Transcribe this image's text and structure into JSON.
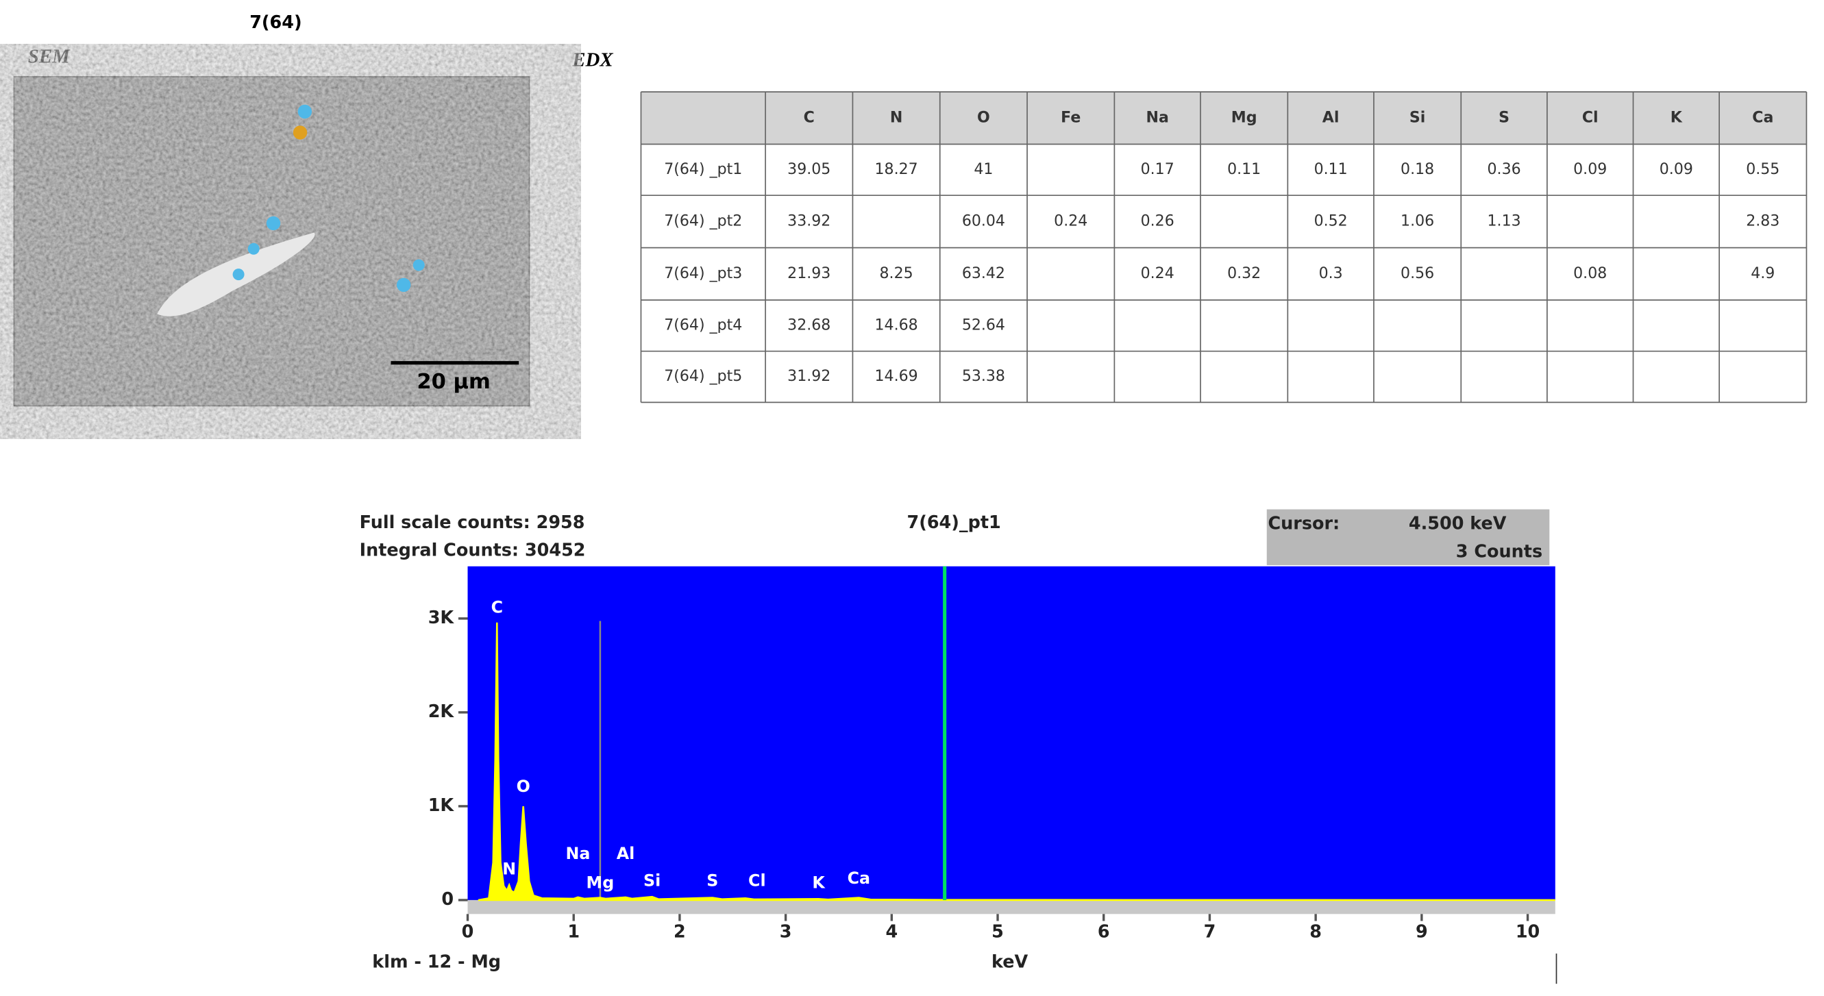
{
  "header": {
    "title": "7(64)",
    "sem_label": "SEM",
    "edx_label": "EDX",
    "scale_bar": "20 µm"
  },
  "table": {
    "columns": [
      "C",
      "N",
      "O",
      "Fe",
      "Na",
      "Mg",
      "Al",
      "Si",
      "S",
      "Cl",
      "K",
      "Ca"
    ],
    "rows": [
      [
        "7(64) _pt1",
        39.05,
        18.27,
        41,
        null,
        0.17,
        0.11,
        0.11,
        0.18,
        0.36,
        0.09,
        0.09,
        0.55
      ],
      [
        "7(64) _pt2",
        33.92,
        null,
        60.04,
        0.24,
        0.26,
        null,
        0.52,
        1.06,
        1.13,
        null,
        null,
        2.83
      ],
      [
        "7(64) _pt3",
        21.93,
        8.25,
        63.42,
        null,
        0.24,
        0.32,
        0.3,
        0.56,
        null,
        0.08,
        null,
        4.9
      ],
      [
        "7(64) _pt4",
        32.68,
        14.68,
        52.64,
        null,
        null,
        null,
        null,
        null,
        null,
        null,
        null,
        null
      ],
      [
        "7(64) _pt5",
        31.92,
        14.69,
        53.38,
        null,
        null,
        null,
        null,
        null,
        null,
        null,
        null,
        null
      ]
    ]
  },
  "chart_data": {
    "type": "area",
    "title": "7(64)_pt1",
    "full_scale": "Full scale counts: 2958",
    "integral": "Integral Counts: 30452",
    "cursor_label": "Cursor:",
    "cursor": {
      "value": 4.5,
      "label": "4.500 keV"
    },
    "cursor_counts": "3 Counts",
    "klm": "klm - 12 - Mg",
    "x_label": "keV",
    "color": "#ffff00",
    "background": "#0000ff",
    "x": [
      0.1,
      0.2,
      0.24,
      0.26,
      0.277,
      0.29,
      0.31,
      0.34,
      0.37,
      0.392,
      0.41,
      0.44,
      0.48,
      0.5,
      0.525,
      0.55,
      0.58,
      0.62,
      0.7,
      1.0,
      1.04,
      1.1,
      1.25,
      1.3,
      1.49,
      1.55,
      1.74,
      1.8,
      2.31,
      2.4,
      2.62,
      2.7,
      3.31,
      3.4,
      3.69,
      3.8,
      4.5,
      10.26
    ],
    "values": [
      0,
      20,
      400,
      1500,
      2958,
      1500,
      400,
      150,
      100,
      160,
      100,
      80,
      200,
      600,
      1000,
      600,
      200,
      50,
      20,
      15,
      30,
      15,
      25,
      15,
      30,
      15,
      35,
      10,
      25,
      10,
      20,
      8,
      12,
      6,
      25,
      6,
      3,
      0
    ],
    "peaks": [
      {
        "label": "C",
        "energy": 0.277
      },
      {
        "label": "N",
        "energy": 0.392
      },
      {
        "label": "O",
        "energy": 0.525
      },
      {
        "label": "Na",
        "energy": 1.04
      },
      {
        "label": "Mg",
        "energy": 1.25
      },
      {
        "label": "Al",
        "energy": 1.49
      },
      {
        "label": "Si",
        "energy": 1.74
      },
      {
        "label": "S",
        "energy": 2.31
      },
      {
        "label": "Cl",
        "energy": 2.62
      },
      {
        "label": "K",
        "energy": 3.31
      },
      {
        "label": "Ca",
        "energy": 3.69
      }
    ],
    "marker": 1.25,
    "xlim": [
      0,
      10.26
    ],
    "xticks": [
      0,
      1,
      2,
      3,
      4,
      5,
      6,
      7,
      8,
      9,
      10
    ],
    "ylim": [
      0,
      3556
    ],
    "yticks": [
      0,
      {
        "value": 1000,
        "label": "1K"
      },
      {
        "value": 2000,
        "label": "2K"
      },
      {
        "value": 3000,
        "label": "3K"
      }
    ]
  }
}
